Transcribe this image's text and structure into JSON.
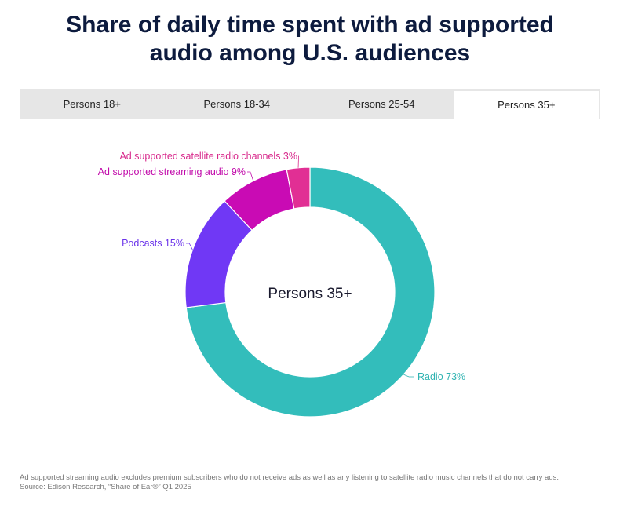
{
  "title_line1": "Share of daily time spent with ad supported",
  "title_line2": "audio among U.S. audiences",
  "tabs": [
    {
      "label": "Persons 18+",
      "active": false
    },
    {
      "label": "Persons 18-34",
      "active": false
    },
    {
      "label": "Persons 25-54",
      "active": false
    },
    {
      "label": "Persons 35+",
      "active": true
    }
  ],
  "chart_data": {
    "type": "pie",
    "donut": true,
    "center_label": "Persons 35+",
    "slices": [
      {
        "label": "Radio 73%",
        "name": "Radio",
        "value": 73,
        "color": "#33bdbb"
      },
      {
        "label": "Podcasts 15%",
        "name": "Podcasts",
        "value": 15,
        "color": "#7038f5"
      },
      {
        "label": "Ad supported streaming audio 9%",
        "name": "Ad supported streaming audio",
        "value": 9,
        "color": "#c90bb4"
      },
      {
        "label": "Ad supported satellite radio channels 3%",
        "name": "Ad supported satellite radio channels",
        "value": 3,
        "color": "#e12f94"
      }
    ],
    "label_colors": [
      "#2fb3b1",
      "#6b34ea",
      "#c10aaa",
      "#d82a8c"
    ]
  },
  "footnote": {
    "line1": "Ad supported streaming audio excludes premium subscribers who do not receive ads as well as any listening to satellite radio music channels that do not carry ads.",
    "source": "Source: Edison Research, “Share of Ear®” Q1 2025"
  }
}
